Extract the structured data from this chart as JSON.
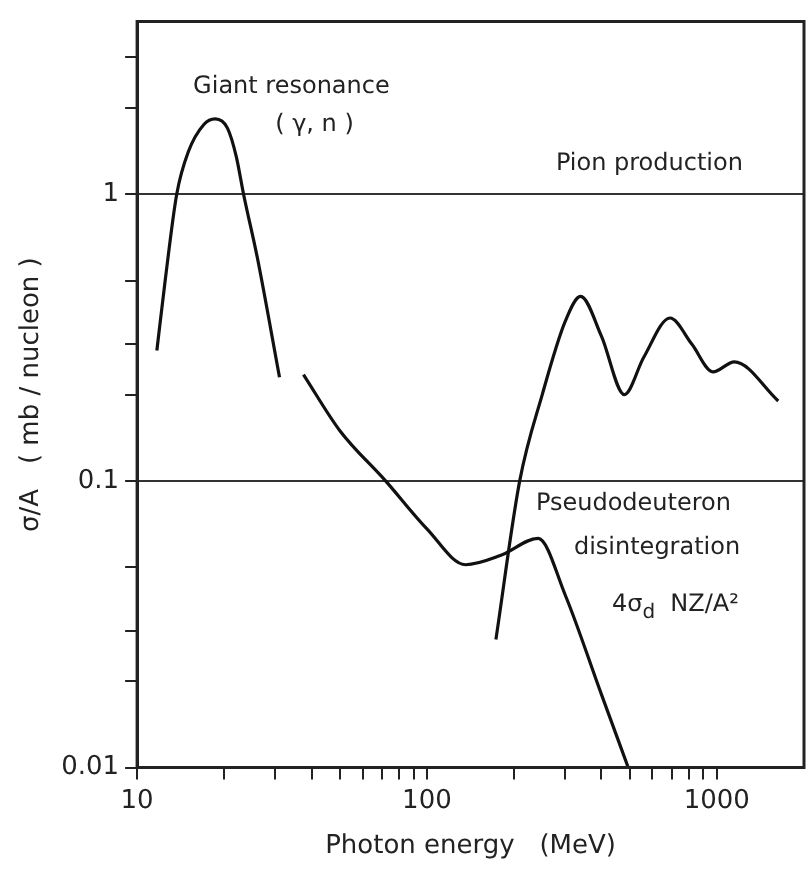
{
  "chart_data": {
    "type": "line",
    "xlabel": "Photon energy   (MeV)",
    "ylabel": "σ/A   ( mb / nucleon )",
    "log": "xy",
    "grid": "y",
    "legend": false,
    "marker": "none",
    "line_style": "solid",
    "xlim": [
      10,
      2000
    ],
    "ylim": [
      0.01,
      4
    ],
    "xticks": [
      10,
      {
        "value": 20,
        "label": null
      },
      {
        "value": 30,
        "label": null
      },
      {
        "value": 40,
        "label": null
      },
      {
        "value": 50,
        "label": null
      },
      {
        "value": 60,
        "label": null
      },
      {
        "value": 70,
        "label": null
      },
      {
        "value": 80,
        "label": null
      },
      {
        "value": 90,
        "label": null
      },
      100,
      {
        "value": 200,
        "label": null
      },
      {
        "value": 300,
        "label": null
      },
      {
        "value": 400,
        "label": null
      },
      {
        "value": 500,
        "label": null
      },
      {
        "value": 600,
        "label": null
      },
      {
        "value": 700,
        "label": null
      },
      {
        "value": 800,
        "label": null
      },
      {
        "value": 900,
        "label": null
      },
      1000
    ],
    "yticks": [
      0.01,
      {
        "value": 0.02,
        "label": null
      },
      {
        "value": 0.03,
        "label": null
      },
      {
        "value": 0.05,
        "label": null
      },
      0.1,
      {
        "value": 0.2,
        "label": null
      },
      {
        "value": 0.3,
        "label": null
      },
      {
        "value": 0.5,
        "label": null
      },
      1,
      {
        "value": 2,
        "label": null
      },
      {
        "value": 3,
        "label": null
      }
    ],
    "series": [
      {
        "color": "#111111",
        "x": [
          11.7,
          12.5,
          13.7,
          15,
          17,
          18.6,
          20.5,
          22,
          23.3,
          26,
          31
        ],
        "values": [
          0.285,
          0.5,
          1,
          1.4,
          1.75,
          1.83,
          1.7,
          1.35,
          1,
          0.6,
          0.23
        ]
      },
      {
        "color": "#111111",
        "x": [
          37.5,
          50,
          72,
          100,
          136,
          180,
          242,
          300,
          400,
          495
        ],
        "values": [
          0.235,
          0.15,
          0.1,
          0.068,
          0.051,
          0.055,
          0.063,
          0.04,
          0.018,
          0.01
        ]
      },
      {
        "color": "#111111",
        "x": [
          173,
          209,
          250,
          300,
          339,
          400,
          480,
          560,
          690,
          820,
          970,
          1150,
          1630
        ],
        "values": [
          0.028,
          0.1,
          0.2,
          0.36,
          0.44,
          0.32,
          0.2,
          0.27,
          0.37,
          0.3,
          0.24,
          0.26,
          0.19
        ]
      }
    ],
    "annotations": [
      "Giant resonance",
      "( γ, n )",
      "Pion production",
      "Pseudodeuteron",
      "disintegration",
      "4σ$_{d}$  NZ/A²"
    ]
  }
}
